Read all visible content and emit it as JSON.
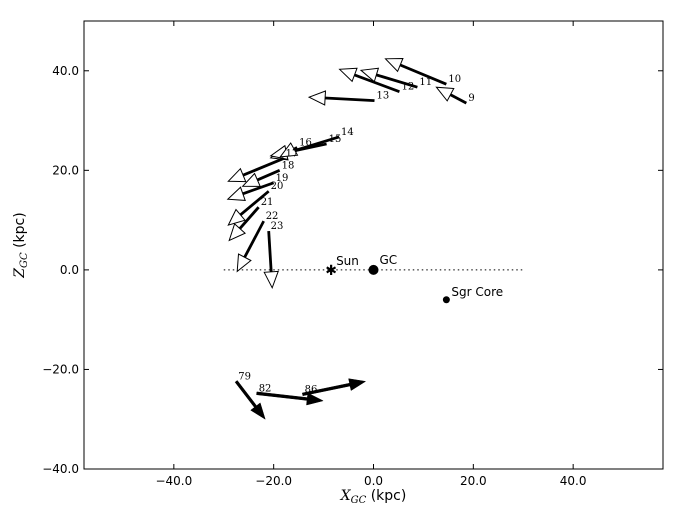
{
  "chart_data": {
    "type": "quiver",
    "title": "",
    "xlabel": {
      "main": "X",
      "sub": "GC",
      "unit": " (kpc)"
    },
    "ylabel": {
      "main": "Z",
      "sub": "GC",
      "unit": " (kpc)"
    },
    "xlim": [
      -58,
      58
    ],
    "ylim": [
      -40,
      50
    ],
    "xticks": [
      {
        "value": -40,
        "label": "−40.0"
      },
      {
        "value": -20,
        "label": "−20.0"
      },
      {
        "value": 0,
        "label": "0.0"
      },
      {
        "value": 20,
        "label": "20.0"
      },
      {
        "value": 40,
        "label": "40.0"
      }
    ],
    "yticks": [
      {
        "value": -40,
        "label": "−40.0"
      },
      {
        "value": -20,
        "label": "−20.0"
      },
      {
        "value": 0,
        "label": "0.0"
      },
      {
        "value": 20,
        "label": "20.0"
      },
      {
        "value": 40,
        "label": "40.0"
      }
    ],
    "reference_line": {
      "y": 0,
      "x_from": -30,
      "x_to": 30,
      "style": "dotted"
    },
    "markers": [
      {
        "name": "sun",
        "label": "Sun",
        "x": -8.5,
        "y": 0,
        "symbol": "star"
      },
      {
        "name": "gc",
        "label": "GC",
        "x": 0,
        "y": 0,
        "symbol": "large-dot"
      },
      {
        "name": "sgr-core",
        "label": "Sgr Core",
        "x": 14.6,
        "y": -6,
        "symbol": "dot"
      }
    ],
    "series": [
      {
        "style": "open-head",
        "arrows": [
          {
            "id": "9",
            "x": 18.6,
            "y": 33.5,
            "dx": -6.0,
            "dy": 3.2
          },
          {
            "id": "10",
            "x": 14.6,
            "y": 37.3,
            "dx": -12.2,
            "dy": 5.1
          },
          {
            "id": "11",
            "x": 8.8,
            "y": 36.7,
            "dx": -11.3,
            "dy": 3.4
          },
          {
            "id": "12",
            "x": 5.2,
            "y": 35.8,
            "dx": -12.0,
            "dy": 4.5
          },
          {
            "id": "13",
            "x": 0.2,
            "y": 34.0,
            "dx": -13.1,
            "dy": 0.7
          },
          {
            "id": "14",
            "x": -6.9,
            "y": 26.7,
            "dx": -13.7,
            "dy": -4.2
          },
          {
            "id": "15",
            "x": -9.4,
            "y": 25.3,
            "dx": -11.2,
            "dy": -2.4
          },
          {
            "id": "16",
            "x": -15.3,
            "y": 24.6,
            "dx": -3.4,
            "dy": -1.9
          },
          {
            "id": "17",
            "x": -18.0,
            "y": 22.4,
            "dx": -11.1,
            "dy": -4.6
          },
          {
            "id": "18",
            "x": -18.8,
            "y": 20.0,
            "dx": -7.4,
            "dy": -3.2
          },
          {
            "id": "19",
            "x": -20.0,
            "y": 17.5,
            "dx": -9.2,
            "dy": -3.3
          },
          {
            "id": "20",
            "x": -21.0,
            "y": 15.8,
            "dx": -8.1,
            "dy": -6.8
          },
          {
            "id": "21",
            "x": -23.0,
            "y": 12.6,
            "dx": -5.9,
            "dy": -6.7
          },
          {
            "id": "22",
            "x": -22.0,
            "y": 9.8,
            "dx": -5.3,
            "dy": -10.1
          },
          {
            "id": "23",
            "x": -21.0,
            "y": 7.8,
            "dx": 0.7,
            "dy": -11.4
          }
        ]
      },
      {
        "style": "filled-head",
        "arrows": [
          {
            "id": "79",
            "x": -27.5,
            "y": -22.4,
            "dx": 5.8,
            "dy": -7.6
          },
          {
            "id": "82",
            "x": -23.4,
            "y": -24.8,
            "dx": 13.3,
            "dy": -1.5
          },
          {
            "id": "86",
            "x": -14.2,
            "y": -25.0,
            "dx": 12.6,
            "dy": 2.6
          }
        ]
      }
    ]
  }
}
